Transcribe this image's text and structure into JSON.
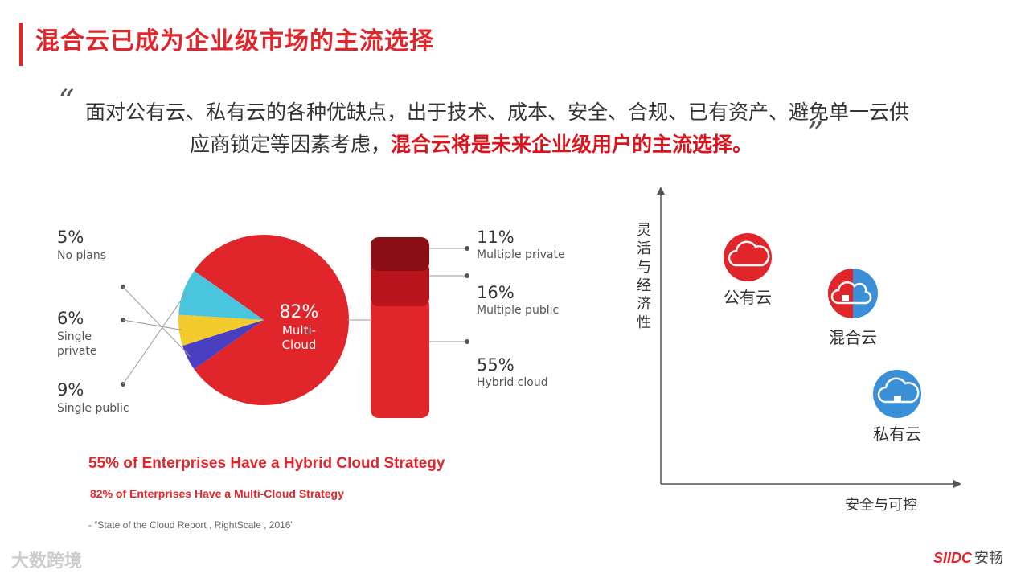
{
  "title": "混合云已成为企业级市场的主流选择",
  "quote": {
    "open": "“",
    "close": "”",
    "line1": "面对公有云、私有云的各种优缺点，出于技术、成本、安全、合规、已有资产、避免单一云供",
    "line2_plain": "应商锁定等因素考虑，",
    "line2_highlight": "混合云将是未来企业级用户的主流选择。"
  },
  "chart_data": [
    {
      "type": "pie",
      "labels": [
        "Multi-Cloud",
        "No plans",
        "Single private",
        "Single public"
      ],
      "values": [
        82,
        5,
        6,
        9
      ],
      "value_labels": [
        "82%",
        "5%",
        "6%",
        "9%"
      ],
      "label_lines": [
        [
          "Multi-",
          "Cloud"
        ],
        [
          "No plans"
        ],
        [
          "Single",
          "private"
        ],
        [
          "Single public"
        ]
      ],
      "colors": [
        "#e0252b",
        "#4a3fc0",
        "#f3cb2d",
        "#49c6dd"
      ]
    },
    {
      "type": "bar",
      "stacked": true,
      "categories": [
        "Multiple private",
        "Multiple public",
        "Hybrid cloud"
      ],
      "values": [
        11,
        16,
        55
      ],
      "value_labels": [
        "11%",
        "16%",
        "55%"
      ],
      "colors": [
        "#8c0e15",
        "#b8141c",
        "#e0252b"
      ]
    },
    {
      "type": "scatter",
      "xlabel": "安全与可控",
      "ylabel": "灵活与经济性",
      "points": [
        {
          "label": "公有云",
          "security": 1,
          "flexibility": 3,
          "color": "#e0252b"
        },
        {
          "label": "混合云",
          "security": 2,
          "flexibility": 2,
          "color": "#e0252b"
        },
        {
          "label": "私有云",
          "security": 3,
          "flexibility": 1,
          "color": "#3a8fd6"
        }
      ]
    }
  ],
  "footnotes": {
    "hybrid_strategy": "55% of Enterprises Have a Hybrid Cloud Strategy",
    "multi_strategy": "82% of Enterprises Have a Multi-Cloud Strategy",
    "source": "-  “State of the Cloud Report , RightScale , 2016”"
  },
  "watermark": "大数跨境",
  "logo": {
    "mark": "SIIDC",
    "name": "安畅"
  }
}
